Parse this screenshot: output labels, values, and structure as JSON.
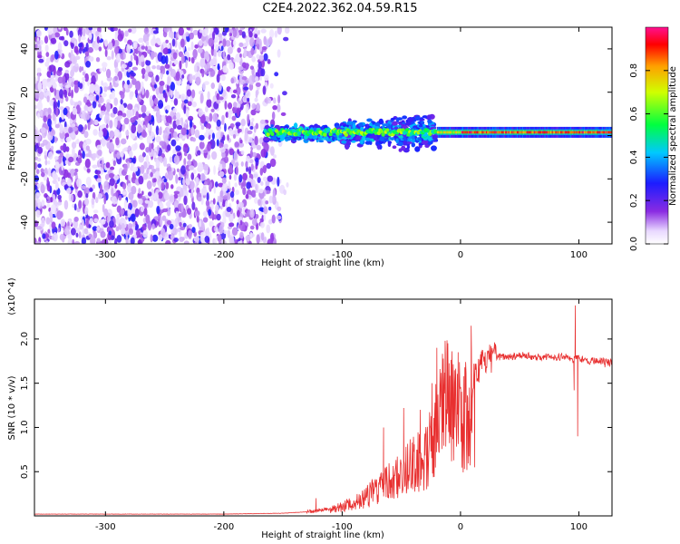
{
  "title": "C2E4.2022.362.04.59.R15",
  "colors": {
    "snr_line": "#e83030",
    "axis": "#000000"
  },
  "chart_data": [
    {
      "type": "heatmap",
      "xlabel": "Height of straight line (km)",
      "ylabel": "Frequency (Hz)",
      "xlim": [
        -360,
        128
      ],
      "ylim": [
        -50,
        50
      ],
      "xticks": [
        "-300",
        "-200",
        "-100",
        "0",
        "100"
      ],
      "yticks": [
        "-40",
        "-20",
        "0",
        "20",
        "40"
      ],
      "colorbar": {
        "label": "Normalized spectral amplitude",
        "range": [
          0,
          1
        ],
        "ticks": [
          "0.0",
          "0.2",
          "0.4",
          "0.6",
          "0.8"
        ],
        "colormap": "white-purple-blue-cyan-green-yellow-red-magenta"
      },
      "regions": [
        {
          "x_range": [
            -360,
            -150
          ],
          "y_range": [
            -50,
            50
          ],
          "level": "low, broadband noise"
        },
        {
          "x_range": [
            -160,
            -20
          ],
          "y_center": 1,
          "spread_hz": 15,
          "level": "high"
        },
        {
          "x_range": [
            -20,
            128
          ],
          "y_center": 1.5,
          "spread_hz": 3,
          "level": "peak ~1.0"
        }
      ]
    },
    {
      "type": "line",
      "xlabel": "Height of straight line (km)",
      "ylabel": "SNR (10 * v/v)",
      "y_multiplier": "(x10^4)",
      "xlim": [
        -360,
        128
      ],
      "ylim": [
        0,
        2.45
      ],
      "xticks": [
        "-300",
        "-200",
        "-100",
        "0",
        "100"
      ],
      "yticks": [
        "0.5",
        "1.0",
        "1.5",
        "2.0"
      ],
      "series": [
        {
          "x": [
            -360,
            -300,
            -250,
            -200,
            -150,
            -125,
            -110,
            -100,
            -90,
            -80,
            -70,
            -60,
            -50,
            -45,
            -40,
            -35,
            -30,
            -25,
            -20,
            -15,
            -10,
            -5,
            0,
            5,
            10,
            15,
            20,
            30,
            40,
            50,
            60,
            70,
            80,
            90,
            95,
            97,
            100,
            110,
            120,
            128
          ],
          "y": [
            0.02,
            0.02,
            0.02,
            0.02,
            0.03,
            0.05,
            0.08,
            0.12,
            0.18,
            0.25,
            0.35,
            0.45,
            0.55,
            0.6,
            0.7,
            0.75,
            0.8,
            0.9,
            1.2,
            1.4,
            1.6,
            1.4,
            1.3,
            1.4,
            1.55,
            1.65,
            1.75,
            1.8,
            1.8,
            1.82,
            1.8,
            1.8,
            1.8,
            1.8,
            1.75,
            1.8,
            1.78,
            1.75,
            1.75,
            1.73
          ],
          "spikes": [
            {
              "x": -122,
              "y": 0.2
            },
            {
              "x": -65,
              "y": 1.0
            },
            {
              "x": -48,
              "y": 1.22
            },
            {
              "x": -34,
              "y": 1.2
            },
            {
              "x": -24,
              "y": 1.5
            },
            {
              "x": -20,
              "y": 1.9
            },
            {
              "x": -13,
              "y": 1.98
            },
            {
              "x": -2,
              "y": 1.85
            },
            {
              "x": 9,
              "y": 2.15
            },
            {
              "x": 12,
              "y": 0.55
            },
            {
              "x": 97,
              "y": 2.38
            },
            {
              "x": 99,
              "y": 0.9
            },
            {
              "x": 96,
              "y": 1.42
            },
            {
              "x": 122,
              "y": 1.68
            }
          ]
        }
      ]
    }
  ]
}
